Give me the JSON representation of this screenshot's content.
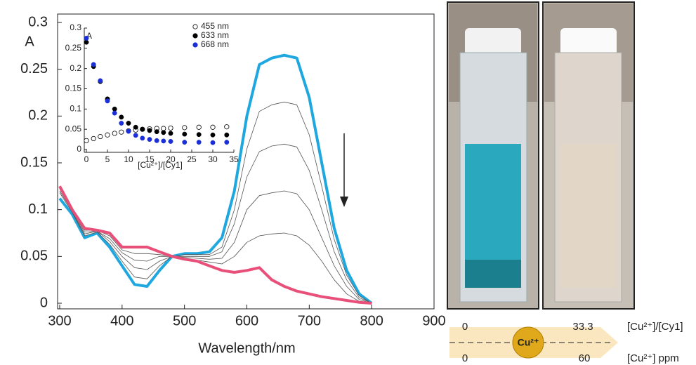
{
  "chart_data": [
    {
      "type": "line",
      "x_label": "Wavelength/nm",
      "y_label": "A",
      "xlim": [
        300,
        900
      ],
      "ylim": [
        0,
        0.3
      ],
      "xticks": [
        300,
        400,
        500,
        600,
        700,
        800,
        900
      ],
      "yticks": [
        0,
        0.05,
        0.1,
        0.15,
        0.2,
        0.25,
        0.3
      ],
      "x": [
        300,
        320,
        340,
        360,
        380,
        400,
        420,
        440,
        460,
        480,
        500,
        520,
        540,
        560,
        580,
        600,
        620,
        640,
        660,
        680,
        700,
        720,
        740,
        760,
        780,
        800
      ],
      "series": [
        {
          "color": "#1fa8e0",
          "values": [
            0.112,
            0.095,
            0.07,
            0.075,
            0.06,
            0.04,
            0.02,
            0.018,
            0.035,
            0.05,
            0.053,
            0.053,
            0.055,
            0.07,
            0.12,
            0.2,
            0.255,
            0.262,
            0.265,
            0.262,
            0.22,
            0.15,
            0.08,
            0.035,
            0.01,
            0
          ]
        },
        {
          "color": "#555555",
          "values": [
            0.118,
            0.097,
            0.072,
            0.076,
            0.063,
            0.045,
            0.028,
            0.026,
            0.04,
            0.05,
            0.052,
            0.052,
            0.052,
            0.06,
            0.1,
            0.165,
            0.205,
            0.212,
            0.215,
            0.212,
            0.18,
            0.125,
            0.068,
            0.03,
            0.008,
            0
          ]
        },
        {
          "color": "#555555",
          "values": [
            0.12,
            0.098,
            0.074,
            0.077,
            0.066,
            0.05,
            0.038,
            0.036,
            0.045,
            0.05,
            0.05,
            0.05,
            0.05,
            0.055,
            0.085,
            0.135,
            0.162,
            0.168,
            0.17,
            0.167,
            0.142,
            0.1,
            0.055,
            0.025,
            0.006,
            0
          ]
        },
        {
          "color": "#555555",
          "values": [
            0.122,
            0.099,
            0.076,
            0.077,
            0.069,
            0.054,
            0.046,
            0.045,
            0.05,
            0.05,
            0.049,
            0.048,
            0.047,
            0.048,
            0.065,
            0.1,
            0.115,
            0.118,
            0.12,
            0.117,
            0.1,
            0.07,
            0.04,
            0.018,
            0.004,
            0
          ]
        },
        {
          "color": "#555555",
          "values": [
            0.124,
            0.1,
            0.078,
            0.078,
            0.072,
            0.057,
            0.053,
            0.053,
            0.052,
            0.05,
            0.048,
            0.046,
            0.044,
            0.042,
            0.05,
            0.065,
            0.072,
            0.074,
            0.075,
            0.072,
            0.062,
            0.045,
            0.025,
            0.01,
            0.002,
            0
          ]
        },
        {
          "color": "#e8507a",
          "values": [
            0.125,
            0.1,
            0.08,
            0.078,
            0.075,
            0.06,
            0.06,
            0.06,
            0.055,
            0.05,
            0.047,
            0.045,
            0.04,
            0.035,
            0.033,
            0.035,
            0.038,
            0.025,
            0.018,
            0.013,
            0.01,
            0.007,
            0.005,
            0.003,
            0.001,
            0
          ]
        }
      ]
    },
    {
      "type": "scatter",
      "x_label": "[Cu²⁺]/[Cy1]",
      "y_label": "A",
      "xlim": [
        0,
        35
      ],
      "ylim": [
        0,
        0.3
      ],
      "xticks": [
        0,
        5,
        10,
        15,
        20,
        25,
        30,
        35
      ],
      "yticks": [
        0,
        0.05,
        0.1,
        0.15,
        0.2,
        0.25,
        0.3
      ],
      "legend": "upper right",
      "x": [
        0,
        1.7,
        3.3,
        5,
        6.7,
        8.3,
        10,
        11.7,
        13.3,
        15,
        16.7,
        18.3,
        20,
        23.3,
        26.7,
        30,
        33.3
      ],
      "series": [
        {
          "name": "455 nm",
          "color": "#000000",
          "marker": "open-circle",
          "values": [
            0.022,
            0.027,
            0.032,
            0.036,
            0.04,
            0.043,
            0.046,
            0.048,
            0.05,
            0.051,
            0.052,
            0.052,
            0.053,
            0.054,
            0.055,
            0.055,
            0.056
          ]
        },
        {
          "name": "633 nm",
          "color": "#000000",
          "marker": "circle",
          "values": [
            0.265,
            0.205,
            0.168,
            0.125,
            0.1,
            0.08,
            0.065,
            0.055,
            0.05,
            0.047,
            0.044,
            0.042,
            0.04,
            0.038,
            0.037,
            0.036,
            0.036
          ]
        },
        {
          "name": "668 nm",
          "color": "#1a2fd6",
          "marker": "circle",
          "values": [
            0.275,
            0.21,
            0.17,
            0.12,
            0.09,
            0.065,
            0.045,
            0.035,
            0.028,
            0.025,
            0.022,
            0.021,
            0.02,
            0.018,
            0.018,
            0.017,
            0.018
          ]
        }
      ]
    }
  ],
  "scale_bar": {
    "ratio_start": "0",
    "ratio_end": "33.3",
    "ratio_label": "[Cu²⁺]/[Cy1]",
    "ppm_start": "0",
    "ppm_end": "60",
    "ppm_label": "[Cu²⁺] ppm",
    "ion": "Cu²⁺"
  }
}
